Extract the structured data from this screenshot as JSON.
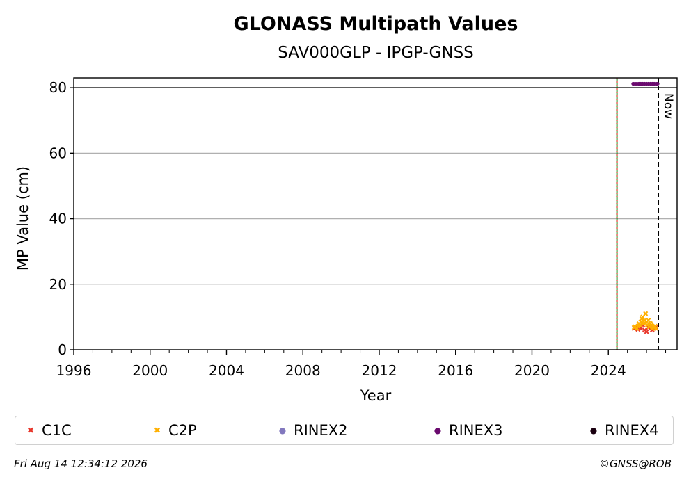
{
  "chart_data": {
    "type": "scatter",
    "title": "GLONASS Multipath Values",
    "subtitle": "SAV000GLP - IPGP-GNSS",
    "xlabel": "Year",
    "ylabel": "MP Value (cm)",
    "xlim": [
      1996,
      2027.6
    ],
    "ylim": [
      0,
      83
    ],
    "xticks": [
      1996,
      2000,
      2004,
      2008,
      2012,
      2016,
      2020,
      2024
    ],
    "yticks": [
      0,
      20,
      40,
      60,
      80
    ],
    "grid": "horizontal",
    "reference_lines": [
      {
        "type": "horizontal",
        "y": 80,
        "color": "#000000",
        "style": "solid"
      },
      {
        "type": "vertical",
        "x": 2024.45,
        "color": "#008000",
        "style": "solid"
      },
      {
        "type": "vertical",
        "x": 2024.45,
        "color": "#ff0000",
        "style": "dotted"
      },
      {
        "type": "vertical",
        "x": 2026.62,
        "color": "#000000",
        "style": "dashed",
        "label": "Now"
      }
    ],
    "series": [
      {
        "name": "C1C",
        "color": "#e8372c",
        "marker": "x",
        "x": [
          2025.35,
          2025.45,
          2025.55,
          2025.6,
          2025.7,
          2025.8,
          2025.9,
          2026.0,
          2026.1,
          2026.2,
          2026.3,
          2026.4,
          2026.5
        ],
        "y": [
          6.5,
          6.8,
          6.2,
          7.0,
          6.5,
          7.5,
          6.0,
          5.5,
          6.8,
          7.2,
          6.0,
          6.5,
          6.8
        ]
      },
      {
        "name": "C2P",
        "color": "#ffb000",
        "marker": "x",
        "x": [
          2025.35,
          2025.4,
          2025.5,
          2025.55,
          2025.6,
          2025.65,
          2025.7,
          2025.75,
          2025.8,
          2025.85,
          2025.9,
          2025.95,
          2026.0,
          2026.05,
          2026.1,
          2026.15,
          2026.2,
          2026.25,
          2026.3,
          2026.35,
          2026.4,
          2026.45,
          2026.5
        ],
        "y": [
          6.8,
          7.0,
          6.5,
          7.2,
          8.0,
          7.5,
          8.5,
          9.5,
          10.0,
          8.0,
          9.0,
          11.0,
          8.5,
          7.5,
          9.0,
          7.0,
          8.0,
          7.5,
          6.5,
          7.0,
          6.8,
          7.2,
          6.5
        ]
      },
      {
        "name": "RINEX2",
        "color": "#8278be",
        "marker": "o",
        "x": [],
        "y": []
      },
      {
        "name": "RINEX3",
        "color": "#6a0a6e",
        "marker": "o",
        "x": [
          2025.3,
          2025.4,
          2025.5,
          2025.6,
          2025.7,
          2025.8,
          2025.9,
          2026.0,
          2026.1,
          2026.2,
          2026.3,
          2026.4,
          2026.5,
          2026.58
        ],
        "y": [
          81.2,
          81.2,
          81.2,
          81.2,
          81.2,
          81.2,
          81.2,
          81.2,
          81.2,
          81.2,
          81.2,
          81.2,
          81.2,
          81.2
        ]
      },
      {
        "name": "RINEX4",
        "color": "#1a0010",
        "marker": "o",
        "x": [],
        "y": []
      }
    ]
  },
  "now_label": "Now",
  "footer": {
    "timestamp": "Fri Aug 14 12:34:12 2026",
    "credit": "©GNSS@ROB"
  }
}
